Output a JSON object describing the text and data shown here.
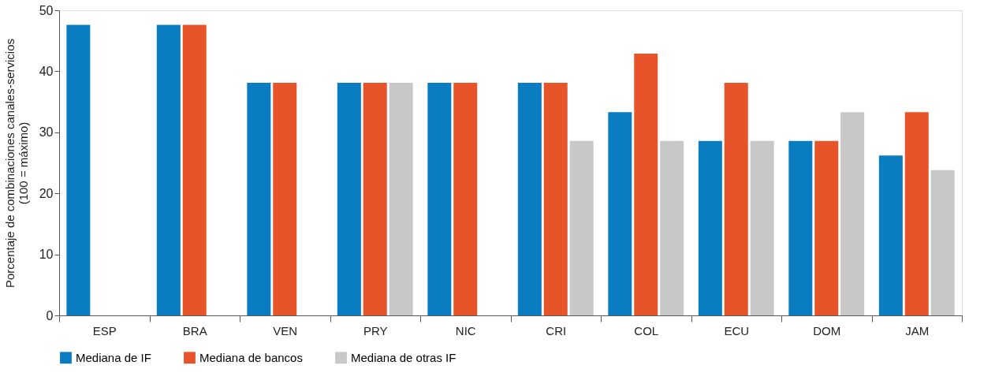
{
  "chart_data": {
    "type": "bar",
    "ylabel": "Porcentaje de combinaciones canales-servicios\n(100 = máximo)",
    "categories": [
      "ESP",
      "BRA",
      "VEN",
      "PRY",
      "NIC",
      "CRI",
      "COL",
      "ECU",
      "DOM",
      "JAM"
    ],
    "series": [
      {
        "name": "Mediana de IF",
        "color": "#0a7cc1",
        "values": [
          47.6,
          47.6,
          38.1,
          38.1,
          38.1,
          38.1,
          33.3,
          28.6,
          28.6,
          26.2
        ]
      },
      {
        "name": "Mediana de bancos",
        "color": "#e8542a",
        "values": [
          null,
          47.6,
          38.1,
          38.1,
          38.1,
          38.1,
          42.9,
          38.1,
          28.6,
          33.3
        ]
      },
      {
        "name": "Mediana de otras IF",
        "color": "#c8c8c9",
        "values": [
          null,
          null,
          null,
          38.1,
          null,
          28.6,
          28.6,
          28.6,
          33.3,
          23.8
        ]
      }
    ],
    "ylim": [
      0,
      50
    ],
    "yticks": [
      0,
      10,
      20,
      30,
      40,
      50
    ],
    "grid": false,
    "legend": "bottom"
  }
}
